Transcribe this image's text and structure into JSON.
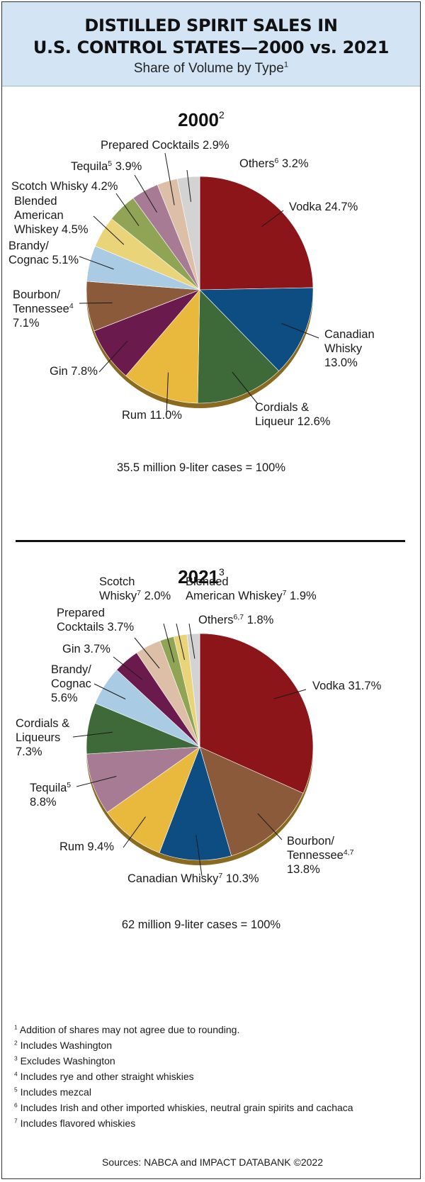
{
  "header": {
    "title_line1": "DISTILLED SPIRIT SALES IN",
    "title_line2": "U.S. CONTROL STATES—2000 vs. 2021",
    "subtitle": "Share of Volume by Type",
    "subtitle_note": "1"
  },
  "chart_data": [
    {
      "type": "pie",
      "title": "2000",
      "title_note": "2",
      "total_label": "35.5 million 9-liter cases = 100%",
      "slices": [
        {
          "label": [
            "Vodka 24.7%"
          ],
          "value": 24.7,
          "color": "#8b1519"
        },
        {
          "label": [
            "Canadian",
            "Whisky",
            "13.0%"
          ],
          "value": 13.0,
          "color": "#0d4d82"
        },
        {
          "label": [
            "Cordials &",
            "Liqueur 12.6%"
          ],
          "value": 12.6,
          "color": "#3e6a3a"
        },
        {
          "label": [
            "Rum 11.0%"
          ],
          "value": 11.0,
          "color": "#e8b93c"
        },
        {
          "label": [
            "Gin 7.8%"
          ],
          "value": 7.8,
          "color": "#6b1a4e"
        },
        {
          "label": [
            "Bourbon/",
            "Tennessee|4",
            "7.1%"
          ],
          "value": 7.1,
          "color": "#8a5a3a"
        },
        {
          "label": [
            "Brandy/",
            "Cognac 5.1%"
          ],
          "value": 5.1,
          "color": "#a9cbe3"
        },
        {
          "label": [
            "Blended",
            "American",
            "Whiskey 4.5%"
          ],
          "value": 4.5,
          "color": "#ead47a"
        },
        {
          "label": [
            "Scotch Whisky 4.2%"
          ],
          "value": 4.2,
          "color": "#8fa455"
        },
        {
          "label": [
            "Tequila|5| 3.9%"
          ],
          "value": 3.9,
          "color": "#a87b94"
        },
        {
          "label": [
            "Prepared Cocktails 2.9%"
          ],
          "value": 2.9,
          "color": "#dcbfa6"
        },
        {
          "label": [
            "Others|6| 3.2%"
          ],
          "value": 3.2,
          "color": "#d3d3d3"
        }
      ]
    },
    {
      "type": "pie",
      "title": "2021",
      "title_note": "3",
      "total_label": "62 million 9-liter cases = 100%",
      "slices": [
        {
          "label": [
            "Vodka 31.7%"
          ],
          "value": 31.7,
          "color": "#8b1519"
        },
        {
          "label": [
            "Bourbon/",
            "Tennessee|4,7",
            "13.8%"
          ],
          "value": 13.8,
          "color": "#8a5a3a"
        },
        {
          "label": [
            "Canadian Whisky|7| 10.3%"
          ],
          "value": 10.3,
          "color": "#0d4d82"
        },
        {
          "label": [
            "Rum 9.4%"
          ],
          "value": 9.4,
          "color": "#e8b93c"
        },
        {
          "label": [
            "Tequila|5",
            "8.8%"
          ],
          "value": 8.8,
          "color": "#a87b94"
        },
        {
          "label": [
            "Cordials &",
            "Liqueurs",
            "7.3%"
          ],
          "value": 7.3,
          "color": "#3e6a3a"
        },
        {
          "label": [
            "Brandy/",
            "Cognac",
            "5.6%"
          ],
          "value": 5.6,
          "color": "#a9cbe3"
        },
        {
          "label": [
            "Gin 3.7%"
          ],
          "value": 3.7,
          "color": "#6b1a4e"
        },
        {
          "label": [
            "Prepared",
            "Cocktails 3.7%"
          ],
          "value": 3.7,
          "color": "#dcbfa6"
        },
        {
          "label": [
            "Scotch",
            "Whisky|7| 2.0%"
          ],
          "value": 2.0,
          "color": "#8fa455"
        },
        {
          "label": [
            "Blended",
            "American Whiskey|7| 1.9%"
          ],
          "value": 1.9,
          "color": "#ead47a"
        },
        {
          "label": [
            "Others|6,7| 1.8%"
          ],
          "value": 1.8,
          "color": "#d3d3d3"
        }
      ]
    }
  ],
  "footnotes": [
    {
      "num": "1",
      "text": "Addition of shares may not agree due to rounding."
    },
    {
      "num": "2",
      "text": "Includes Washington"
    },
    {
      "num": "3",
      "text": "Excludes Washington"
    },
    {
      "num": "4",
      "text": "Includes rye and other straight whiskies"
    },
    {
      "num": "5",
      "text": "Includes mezcal"
    },
    {
      "num": "6",
      "text": "Includes Irish and other imported whiskies, neutral grain spirits and cachaca"
    },
    {
      "num": "7",
      "text": "Includes flavored whiskies"
    }
  ],
  "sources": "Sources: NABCA and IMPACT DATABANK ©2022"
}
